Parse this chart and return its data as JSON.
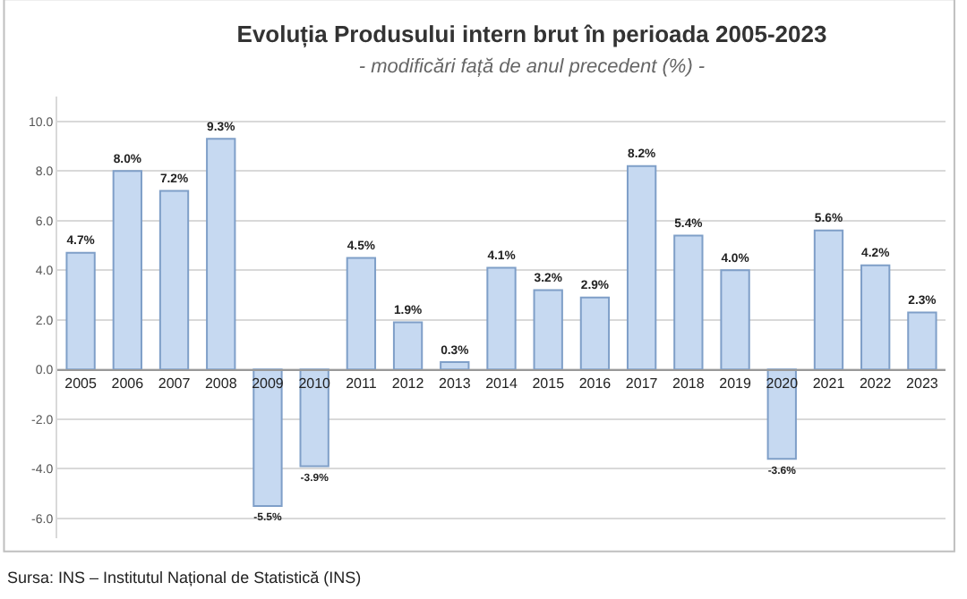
{
  "chart_data": {
    "type": "bar",
    "title": "Evoluția Produsului intern brut în perioada 2005-2023",
    "subtitle": "- modificări față de anul precedent (%) -",
    "categories": [
      "2005",
      "2006",
      "2007",
      "2008",
      "2009",
      "2010",
      "2011",
      "2012",
      "2013",
      "2014",
      "2015",
      "2016",
      "2017",
      "2018",
      "2019",
      "2020",
      "2021",
      "2022",
      "2023"
    ],
    "values": [
      4.7,
      8.0,
      7.2,
      9.3,
      -5.5,
      -3.9,
      4.5,
      1.9,
      0.3,
      4.1,
      3.2,
      2.9,
      8.2,
      5.4,
      4.0,
      -3.6,
      5.6,
      4.2,
      2.3
    ],
    "value_labels": [
      "4.7%",
      "8.0%",
      "7.2%",
      "9.3%",
      "-5.5%",
      "-3.9%",
      "4.5%",
      "1.9%",
      "0.3%",
      "4.1%",
      "3.2%",
      "2.9%",
      "8.2%",
      "5.4%",
      "4.0%",
      "-3.6%",
      "5.6%",
      "4.2%",
      "2.3%"
    ],
    "color": "#c6d9f1",
    "ylim": [
      -6.8,
      11
    ],
    "yticks": [
      {
        "value": -6,
        "label": "-6.0"
      },
      {
        "value": -4,
        "label": "-4.0"
      },
      {
        "value": -2,
        "label": "-2.0"
      },
      {
        "value": 0,
        "label": "0.0"
      },
      {
        "value": 2,
        "label": "2.0"
      },
      {
        "value": 4,
        "label": "4.0"
      },
      {
        "value": 6,
        "label": "6.0"
      },
      {
        "value": 8,
        "label": "8.0"
      },
      {
        "value": 10,
        "label": "10.0"
      }
    ],
    "grid": "y",
    "annotations": [
      "Sursa: INS – Institutul Național de Statistică (INS)"
    ]
  }
}
